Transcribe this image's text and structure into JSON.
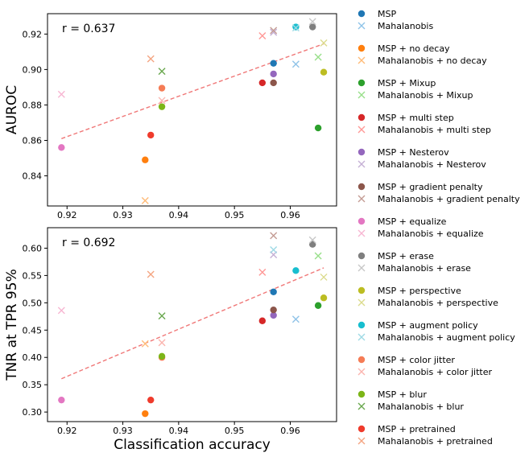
{
  "chart_data": [
    {
      "type": "scatter",
      "ylabel": "AUROC",
      "annotation": "r = 0.637",
      "xlim": [
        0.9165,
        0.9683
      ],
      "ylim": [
        0.823,
        0.9315
      ],
      "xticks": [
        "0.92",
        "0.93",
        "0.94",
        "0.95",
        "0.96"
      ],
      "xtick_values": [
        0.92,
        0.93,
        0.94,
        0.95,
        0.96
      ],
      "yticks": [
        "0.84",
        "0.86",
        "0.88",
        "0.90",
        "0.92"
      ],
      "ytick_values": [
        0.84,
        0.86,
        0.88,
        0.9,
        0.92
      ],
      "trendline": {
        "x": [
          0.919,
          0.966
        ],
        "y": [
          0.861,
          0.9145
        ],
        "color": "#f07878"
      },
      "points": [
        {
          "series": 0,
          "marker": "dot",
          "x": 0.957,
          "y": 0.9035
        },
        {
          "series": 0,
          "marker": "x",
          "x": 0.961,
          "y": 0.903
        },
        {
          "series": 1,
          "marker": "dot",
          "x": 0.934,
          "y": 0.849
        },
        {
          "series": 1,
          "marker": "x",
          "x": 0.934,
          "y": 0.826
        },
        {
          "series": 2,
          "marker": "dot",
          "x": 0.965,
          "y": 0.867
        },
        {
          "series": 2,
          "marker": "x",
          "x": 0.965,
          "y": 0.907
        },
        {
          "series": 3,
          "marker": "dot",
          "x": 0.955,
          "y": 0.8925
        },
        {
          "series": 3,
          "marker": "x",
          "x": 0.955,
          "y": 0.919
        },
        {
          "series": 4,
          "marker": "dot",
          "x": 0.957,
          "y": 0.8975
        },
        {
          "series": 4,
          "marker": "x",
          "x": 0.957,
          "y": 0.921
        },
        {
          "series": 5,
          "marker": "dot",
          "x": 0.957,
          "y": 0.8925
        },
        {
          "series": 5,
          "marker": "x",
          "x": 0.957,
          "y": 0.922
        },
        {
          "series": 6,
          "marker": "dot",
          "x": 0.919,
          "y": 0.856
        },
        {
          "series": 6,
          "marker": "x",
          "x": 0.919,
          "y": 0.886
        },
        {
          "series": 7,
          "marker": "dot",
          "x": 0.964,
          "y": 0.924
        },
        {
          "series": 7,
          "marker": "x",
          "x": 0.964,
          "y": 0.927
        },
        {
          "series": 8,
          "marker": "dot",
          "x": 0.966,
          "y": 0.8985
        },
        {
          "series": 8,
          "marker": "x",
          "x": 0.966,
          "y": 0.915
        },
        {
          "series": 9,
          "marker": "dot",
          "x": 0.961,
          "y": 0.924
        },
        {
          "series": 9,
          "marker": "x",
          "x": 0.961,
          "y": 0.9235
        },
        {
          "series": 10,
          "marker": "dot",
          "x": 0.937,
          "y": 0.8895
        },
        {
          "series": 10,
          "marker": "x",
          "x": 0.937,
          "y": 0.8825
        },
        {
          "series": 11,
          "marker": "dot",
          "x": 0.937,
          "y": 0.879
        },
        {
          "series": 11,
          "marker": "x",
          "x": 0.937,
          "y": 0.899
        },
        {
          "series": 12,
          "marker": "dot",
          "x": 0.935,
          "y": 0.863
        },
        {
          "series": 12,
          "marker": "x",
          "x": 0.935,
          "y": 0.906
        }
      ]
    },
    {
      "type": "scatter",
      "xlabel": "Classification accuracy",
      "ylabel": "TNR at TPR 95%",
      "annotation": "r = 0.692",
      "xlim": [
        0.9165,
        0.9683
      ],
      "ylim": [
        0.2825,
        0.6375
      ],
      "xticks": [
        "0.92",
        "0.93",
        "0.94",
        "0.95",
        "0.96"
      ],
      "xtick_values": [
        0.92,
        0.93,
        0.94,
        0.95,
        0.96
      ],
      "yticks": [
        "0.30",
        "0.35",
        "0.40",
        "0.45",
        "0.50",
        "0.55",
        "0.60"
      ],
      "ytick_values": [
        0.3,
        0.35,
        0.4,
        0.45,
        0.5,
        0.55,
        0.6
      ],
      "trendline": {
        "x": [
          0.919,
          0.966
        ],
        "y": [
          0.361,
          0.564
        ],
        "color": "#f07878"
      },
      "points": [
        {
          "series": 0,
          "marker": "dot",
          "x": 0.957,
          "y": 0.52
        },
        {
          "series": 0,
          "marker": "x",
          "x": 0.961,
          "y": 0.47
        },
        {
          "series": 1,
          "marker": "dot",
          "x": 0.934,
          "y": 0.297
        },
        {
          "series": 1,
          "marker": "x",
          "x": 0.934,
          "y": 0.425
        },
        {
          "series": 2,
          "marker": "dot",
          "x": 0.965,
          "y": 0.495
        },
        {
          "series": 2,
          "marker": "x",
          "x": 0.965,
          "y": 0.586
        },
        {
          "series": 3,
          "marker": "dot",
          "x": 0.955,
          "y": 0.467
        },
        {
          "series": 3,
          "marker": "x",
          "x": 0.955,
          "y": 0.556
        },
        {
          "series": 4,
          "marker": "dot",
          "x": 0.957,
          "y": 0.477
        },
        {
          "series": 4,
          "marker": "x",
          "x": 0.957,
          "y": 0.588
        },
        {
          "series": 5,
          "marker": "dot",
          "x": 0.957,
          "y": 0.487
        },
        {
          "series": 5,
          "marker": "x",
          "x": 0.957,
          "y": 0.623
        },
        {
          "series": 6,
          "marker": "dot",
          "x": 0.919,
          "y": 0.322
        },
        {
          "series": 6,
          "marker": "x",
          "x": 0.919,
          "y": 0.486
        },
        {
          "series": 7,
          "marker": "dot",
          "x": 0.964,
          "y": 0.607
        },
        {
          "series": 7,
          "marker": "x",
          "x": 0.964,
          "y": 0.615
        },
        {
          "series": 8,
          "marker": "dot",
          "x": 0.966,
          "y": 0.509
        },
        {
          "series": 8,
          "marker": "x",
          "x": 0.966,
          "y": 0.547
        },
        {
          "series": 9,
          "marker": "dot",
          "x": 0.961,
          "y": 0.559
        },
        {
          "series": 9,
          "marker": "x",
          "x": 0.957,
          "y": 0.597
        },
        {
          "series": 10,
          "marker": "dot",
          "x": 0.937,
          "y": 0.4
        },
        {
          "series": 10,
          "marker": "x",
          "x": 0.937,
          "y": 0.427
        },
        {
          "series": 11,
          "marker": "dot",
          "x": 0.937,
          "y": 0.402
        },
        {
          "series": 11,
          "marker": "x",
          "x": 0.937,
          "y": 0.476
        },
        {
          "series": 12,
          "marker": "dot",
          "x": 0.935,
          "y": 0.322
        },
        {
          "series": 12,
          "marker": "x",
          "x": 0.935,
          "y": 0.552
        }
      ]
    }
  ],
  "legend": {
    "placement": "right",
    "groups": [
      {
        "dot_label": "MSP",
        "x_label": "Mahalanobis",
        "dot_color": "#1f77b4",
        "x_color": "#8fc3e8"
      },
      {
        "dot_label": "MSP + no decay",
        "x_label": "Mahalanobis + no decay",
        "dot_color": "#ff7f0e",
        "x_color": "#ffbb78"
      },
      {
        "dot_label": "MSP + Mixup",
        "x_label": "Mahalanobis + Mixup",
        "dot_color": "#2ca02c",
        "x_color": "#98df8a"
      },
      {
        "dot_label": "MSP + multi step",
        "x_label": "Mahalanobis + multi step",
        "dot_color": "#d62728",
        "x_color": "#ff9896"
      },
      {
        "dot_label": "MSP + Nesterov",
        "x_label": "Mahalanobis + Nesterov",
        "dot_color": "#9467bd",
        "x_color": "#c5b0d5"
      },
      {
        "dot_label": "MSP + gradient penalty",
        "x_label": "Mahalanobis + gradient penalty",
        "dot_color": "#8c564b",
        "x_color": "#c49c94"
      },
      {
        "dot_label": "MSP + equalize",
        "x_label": "Mahalanobis + equalize",
        "dot_color": "#e377c2",
        "x_color": "#f7b6d2"
      },
      {
        "dot_label": "MSP + erase",
        "x_label": "Mahalanobis + erase",
        "dot_color": "#7f7f7f",
        "x_color": "#c7c7c7"
      },
      {
        "dot_label": "MSP + perspective",
        "x_label": "Mahalanobis + perspective",
        "dot_color": "#bcbd22",
        "x_color": "#dbdb8d"
      },
      {
        "dot_label": "MSP + augment policy",
        "x_label": "Mahalanobis + augment policy",
        "dot_color": "#17becf",
        "x_color": "#9edae5"
      },
      {
        "dot_label": "MSP + color jitter",
        "x_label": "Mahalanobis + color jitter",
        "dot_color": "#f57c55",
        "x_color": "#fbb4ae"
      },
      {
        "dot_label": "MSP + blur",
        "x_label": "Mahalanobis + blur",
        "dot_color": "#7cb518",
        "x_color": "#6aa84f"
      },
      {
        "dot_label": "MSP + pretrained",
        "x_label": "Mahalanobis + pretrained",
        "dot_color": "#ef3b2c",
        "x_color": "#f4a582"
      }
    ]
  }
}
